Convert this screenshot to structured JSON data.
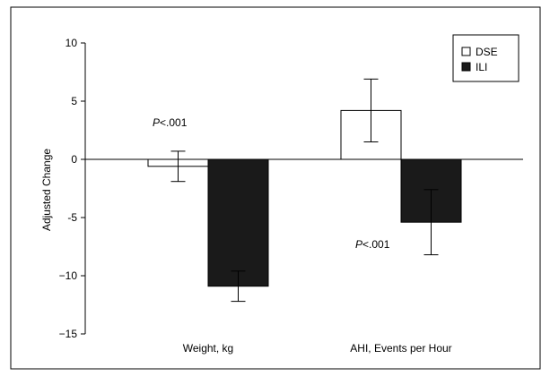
{
  "chart_data": {
    "type": "bar",
    "categories": [
      "Weight, kg",
      "AHI, Events per Hour"
    ],
    "series": [
      {
        "name": "DSE",
        "color": "#ffffff",
        "values": [
          -0.6,
          4.2
        ],
        "error_low": [
          -1.9,
          1.5
        ],
        "error_high": [
          0.7,
          6.9
        ]
      },
      {
        "name": "ILI",
        "color": "#1a1a1a",
        "values": [
          -10.9,
          -5.4
        ],
        "error_low": [
          -12.2,
          -8.2
        ],
        "error_high": [
          -9.6,
          -2.6
        ]
      }
    ],
    "ylabel": "Adjusted Change",
    "xlabel": "",
    "ylim": [
      -15,
      10
    ],
    "yticks": [
      10,
      5,
      0,
      -5,
      -10,
      -15
    ],
    "ytick_labels": [
      "10",
      "5",
      "0",
      "-5",
      "−10",
      "−15"
    ],
    "grid": false,
    "legend": "top-right",
    "annotations": [
      {
        "label": "P",
        "text": "<.001",
        "category": 0
      },
      {
        "label": "P",
        "text": "<.001",
        "category": 1
      }
    ]
  }
}
